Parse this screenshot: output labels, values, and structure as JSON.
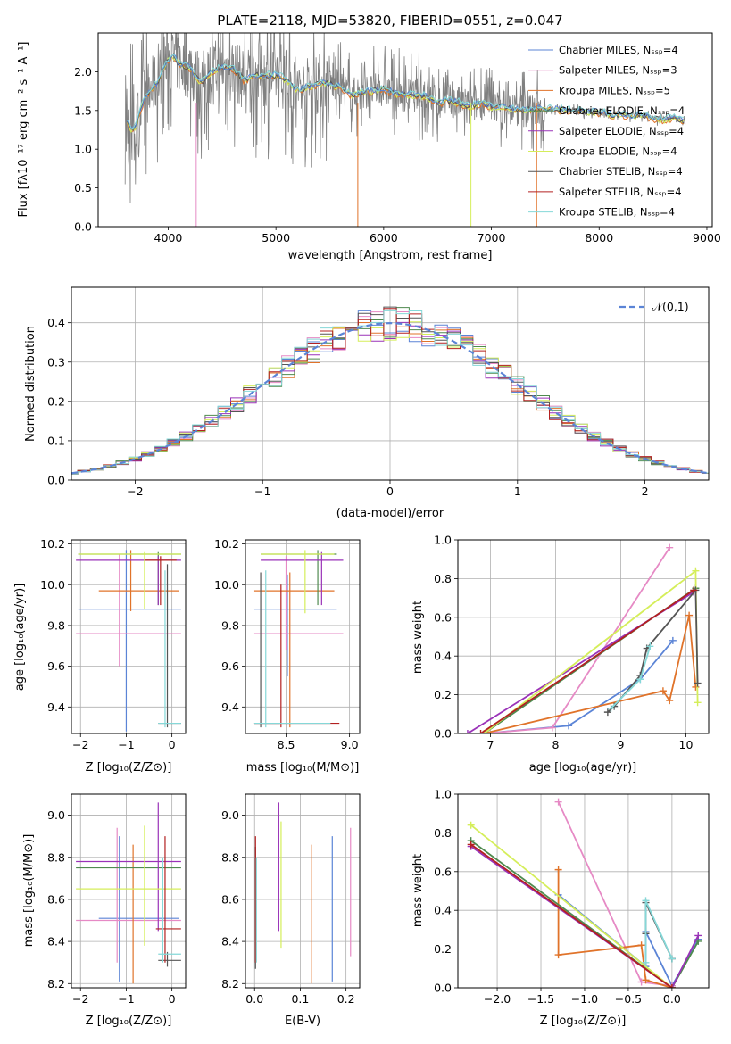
{
  "colors": [
    "#5b84d6",
    "#e68ac5",
    "#e0732a",
    "#4f8a4f",
    "#9a32b8",
    "#d5ee5a",
    "#555555",
    "#b32020",
    "#85d8d8"
  ],
  "chart_data": [
    {
      "id": "spectrum",
      "type": "line",
      "title": "PLATE=2118, MJD=53820, FIBERID=0551, z=0.047",
      "xlabel": "wavelength [Angstrom, rest frame]",
      "ylabel": "Flux [fλ10⁻¹⁷ erg cm⁻² s⁻¹ A⁻¹]",
      "xlim": [
        3350,
        9050
      ],
      "ylim": [
        0,
        2.5
      ],
      "xticks": [
        "4000",
        "5000",
        "6000",
        "7000",
        "8000",
        "9000"
      ],
      "yticks": [
        "0.0",
        "0.5",
        "1.0",
        "1.5",
        "2.0"
      ],
      "legend_position": "top-right",
      "legend": [
        "Chabrier MILES, Nₛₛₚ=4",
        "Salpeter MILES, Nₛₛₚ=3",
        "Kroupa MILES, Nₛₛₚ=5",
        "Chabrier ELODIE, Nₛₛₚ=4",
        "Salpeter ELODIE, Nₛₛₚ=4",
        "Kroupa ELODIE, Nₛₛₚ=4",
        "Chabrier STELIB, Nₛₛₚ=4",
        "Salpeter STELIB, Nₛₛₚ=4",
        "Kroupa STELIB, Nₛₛₚ=4"
      ],
      "model_trace": {
        "x": [
          3600,
          3650,
          3700,
          3750,
          3800,
          3850,
          3900,
          3950,
          4000,
          4050,
          4100,
          4200,
          4300,
          4400,
          4500,
          4600,
          4700,
          4800,
          4900,
          5000,
          5100,
          5200,
          5300,
          5400,
          5500,
          5600,
          5700,
          5800,
          5900,
          6000,
          6100,
          6200,
          6300,
          6400,
          6500,
          6600,
          6700,
          6800,
          6900,
          7000,
          7100,
          7200,
          7300,
          7400,
          7500,
          7600,
          7700,
          7800,
          7900,
          8000,
          8100,
          8200,
          8300,
          8400,
          8500,
          8600,
          8700,
          8800
        ],
        "y": [
          1.5,
          1.25,
          1.3,
          1.55,
          1.7,
          1.8,
          1.85,
          2.05,
          2.15,
          2.2,
          2.1,
          2.05,
          1.85,
          2.0,
          2.05,
          2.05,
          1.9,
          1.95,
          1.95,
          1.95,
          1.9,
          1.75,
          1.8,
          1.85,
          1.85,
          1.8,
          1.7,
          1.75,
          1.75,
          1.78,
          1.72,
          1.7,
          1.7,
          1.68,
          1.6,
          1.62,
          1.6,
          1.55,
          1.6,
          1.55,
          1.55,
          1.52,
          1.5,
          1.52,
          1.52,
          1.52,
          1.5,
          1.5,
          1.48,
          1.48,
          1.45,
          1.45,
          1.42,
          1.45,
          1.4,
          1.38,
          1.42,
          1.35
        ]
      }
    },
    {
      "id": "residuals",
      "type": "histogram",
      "xlabel": "(data-model)/error",
      "ylabel": "Normed distribution",
      "xlim": [
        -2.5,
        2.5
      ],
      "ylim": [
        0,
        0.49
      ],
      "xticks": [
        "−2",
        "−1",
        "0",
        "1",
        "2"
      ],
      "yticks": [
        "0.0",
        "0.1",
        "0.2",
        "0.3",
        "0.4"
      ],
      "legend": [
        "𝒩(0,1)"
      ],
      "legend_position": "top-right",
      "bin_width": 0.1,
      "reference_curve": "gaussian mean 0 sigma 1"
    },
    {
      "id": "age-vs-Z",
      "type": "errorbar",
      "xlabel": "Z [log₁₀(Z/Z⊙)]",
      "ylabel": "age  [log₁₀(age/yr)]",
      "xlim": [
        -2.2,
        0.3
      ],
      "ylim": [
        9.27,
        10.22
      ],
      "xticks": [
        "−2",
        "−1",
        "0"
      ],
      "yticks": [
        "9.4",
        "9.6",
        "9.8",
        "10.0",
        "10.2"
      ],
      "points": [
        {
          "c": 0,
          "x": -1.0,
          "y": 9.88,
          "xlo": -2.05,
          "xhi": 0.2,
          "ylo": 9.28,
          "yhi": 10.17
        },
        {
          "c": 1,
          "x": -1.15,
          "y": 9.76,
          "xlo": -2.1,
          "xhi": 0.2,
          "ylo": 9.6,
          "yhi": 10.15
        },
        {
          "c": 2,
          "x": -0.9,
          "y": 9.97,
          "xlo": -1.6,
          "xhi": 0.15,
          "ylo": 9.87,
          "yhi": 10.17
        },
        {
          "c": 3,
          "x": -0.3,
          "y": 10.15,
          "xlo": -2.05,
          "xhi": 0.2,
          "ylo": 9.9,
          "yhi": 10.16
        },
        {
          "c": 4,
          "x": -0.3,
          "y": 10.12,
          "xlo": -2.1,
          "xhi": 0.2,
          "ylo": 9.9,
          "yhi": 10.14
        },
        {
          "c": 5,
          "x": -0.6,
          "y": 10.15,
          "xlo": -2.05,
          "xhi": 0.2,
          "ylo": 9.88,
          "yhi": 10.16
        },
        {
          "c": 6,
          "x": -0.1,
          "y": 9.32,
          "xlo": -0.3,
          "xhi": 0.2,
          "ylo": 9.3,
          "yhi": 10.1
        },
        {
          "c": 7,
          "x": -0.25,
          "y": 10.12,
          "xlo": -0.6,
          "xhi": 0.1,
          "ylo": 9.9,
          "yhi": 10.14
        },
        {
          "c": 8,
          "x": -0.15,
          "y": 9.32,
          "xlo": -0.3,
          "xhi": 0.2,
          "ylo": 9.3,
          "yhi": 10.07
        }
      ]
    },
    {
      "id": "age-vs-mass",
      "type": "errorbar",
      "xlabel": "mass [log₁₀(M/M⊙)]",
      "ylabel": "",
      "xlim": [
        8.18,
        9.08
      ],
      "ylim": [
        9.27,
        10.22
      ],
      "xticks": [
        "8.5",
        "9.0"
      ],
      "yticks": [
        "9.4",
        "9.6",
        "9.8",
        "10.0",
        "10.2"
      ],
      "points": [
        {
          "c": 0,
          "x": 8.51,
          "y": 9.88,
          "xlo": 8.25,
          "xhi": 8.9,
          "ylo": 9.55,
          "yhi": 10.05
        },
        {
          "c": 1,
          "x": 8.5,
          "y": 9.76,
          "xlo": 8.25,
          "xhi": 8.95,
          "ylo": 9.68,
          "yhi": 10.14
        },
        {
          "c": 2,
          "x": 8.53,
          "y": 9.97,
          "xlo": 8.25,
          "xhi": 8.88,
          "ylo": 9.3,
          "yhi": 10.06
        },
        {
          "c": 3,
          "x": 8.75,
          "y": 10.15,
          "xlo": 8.3,
          "xhi": 8.9,
          "ylo": 9.9,
          "yhi": 10.17
        },
        {
          "c": 4,
          "x": 8.78,
          "y": 10.12,
          "xlo": 8.3,
          "xhi": 8.95,
          "ylo": 9.9,
          "yhi": 10.16
        },
        {
          "c": 5,
          "x": 8.65,
          "y": 10.15,
          "xlo": 8.3,
          "xhi": 8.88,
          "ylo": 9.86,
          "yhi": 10.17
        },
        {
          "c": 6,
          "x": 8.3,
          "y": 9.32,
          "xlo": 8.25,
          "xhi": 8.45,
          "ylo": 9.3,
          "yhi": 10.06
        },
        {
          "c": 7,
          "x": 8.46,
          "y": 9.32,
          "xlo": 8.25,
          "xhi": 8.92,
          "ylo": 9.3,
          "yhi": 10.0
        },
        {
          "c": 8,
          "x": 8.34,
          "y": 9.32,
          "xlo": 8.25,
          "xhi": 8.85,
          "ylo": 9.3,
          "yhi": 10.07
        }
      ]
    },
    {
      "id": "weight-vs-age",
      "type": "line",
      "xlabel": "age  [log₁₀(age/yr)]",
      "ylabel": "mass weight",
      "xlim": [
        6.5,
        10.35
      ],
      "ylim": [
        0,
        1.0
      ],
      "xticks": [
        "7",
        "8",
        "9",
        "10"
      ],
      "yticks": [
        "0.0",
        "0.2",
        "0.4",
        "0.6",
        "0.8",
        "1.0"
      ],
      "series": [
        {
          "c": 0,
          "x": [
            6.9,
            8.2,
            9.3,
            9.8
          ],
          "y": [
            0.0,
            0.04,
            0.28,
            0.48
          ]
        },
        {
          "c": 1,
          "x": [
            6.9,
            7.95,
            9.75
          ],
          "y": [
            0.0,
            0.03,
            0.96
          ]
        },
        {
          "c": 2,
          "x": [
            6.9,
            9.65,
            9.75,
            10.05,
            10.15
          ],
          "y": [
            0.0,
            0.22,
            0.17,
            0.61,
            0.24
          ]
        },
        {
          "c": 3,
          "x": [
            6.9,
            10.15
          ],
          "y": [
            0.0,
            0.75
          ]
        },
        {
          "c": 4,
          "x": [
            6.65,
            10.12
          ],
          "y": [
            0.0,
            0.73
          ]
        },
        {
          "c": 5,
          "x": [
            6.9,
            10.15,
            10.18
          ],
          "y": [
            0.0,
            0.84,
            0.16
          ]
        },
        {
          "c": 6,
          "x": [
            8.8,
            8.9,
            9.3,
            9.4,
            10.15,
            10.18
          ],
          "y": [
            0.11,
            0.14,
            0.3,
            0.44,
            0.74,
            0.26
          ]
        },
        {
          "c": 7,
          "x": [
            6.85,
            10.12
          ],
          "y": [
            0.0,
            0.74
          ]
        },
        {
          "c": 8,
          "x": [
            8.85,
            9.3,
            9.45
          ],
          "y": [
            0.13,
            0.28,
            0.45
          ]
        }
      ]
    },
    {
      "id": "mass-vs-Z",
      "type": "errorbar",
      "xlabel": "Z [log₁₀(Z/Z⊙)]",
      "ylabel": "mass [log₁₀(M/M⊙)]",
      "xlim": [
        -2.2,
        0.3
      ],
      "ylim": [
        8.18,
        9.1
      ],
      "xticks": [
        "−2",
        "−1",
        "0"
      ],
      "yticks": [
        "8.2",
        "8.4",
        "8.6",
        "8.8",
        "9.0"
      ],
      "points": [
        {
          "c": 0,
          "x": -1.15,
          "y": 8.51,
          "xlo": -1.6,
          "xhi": 0.15,
          "ylo": 8.21,
          "yhi": 8.9
        },
        {
          "c": 1,
          "x": -1.2,
          "y": 8.5,
          "xlo": -2.1,
          "xhi": 0.2,
          "ylo": 8.3,
          "yhi": 8.94
        },
        {
          "c": 2,
          "x": -0.85,
          "y": 8.53,
          "xlo": -0.85,
          "xhi": -0.85,
          "ylo": 8.2,
          "yhi": 8.86
        },
        {
          "c": 3,
          "x": -0.5,
          "y": 8.75,
          "xlo": -2.1,
          "xhi": 0.2,
          "ylo": 8.75,
          "yhi": 8.75
        },
        {
          "c": 4,
          "x": -0.3,
          "y": 8.78,
          "xlo": -2.1,
          "xhi": 0.2,
          "ylo": 8.45,
          "yhi": 9.06
        },
        {
          "c": 5,
          "x": -0.6,
          "y": 8.65,
          "xlo": -2.1,
          "xhi": 0.2,
          "ylo": 8.38,
          "yhi": 8.95
        },
        {
          "c": 6,
          "x": -0.1,
          "y": 8.31,
          "xlo": -0.3,
          "xhi": 0.2,
          "ylo": 8.28,
          "yhi": 8.35
        },
        {
          "c": 7,
          "x": -0.15,
          "y": 8.46,
          "xlo": -0.35,
          "xhi": 0.2,
          "ylo": 8.3,
          "yhi": 8.9
        },
        {
          "c": 8,
          "x": -0.2,
          "y": 8.34,
          "xlo": -0.3,
          "xhi": 0.2,
          "ylo": 8.3,
          "yhi": 8.8
        }
      ]
    },
    {
      "id": "mass-vs-EBV",
      "type": "errorbar",
      "xlabel": "E(B-V)",
      "ylabel": "",
      "xlim": [
        -0.02,
        0.23
      ],
      "ylim": [
        8.18,
        9.1
      ],
      "xticks": [
        "0.0",
        "0.1",
        "0.2"
      ],
      "yticks": [
        "8.2",
        "8.4",
        "8.6",
        "8.8",
        "9.0"
      ],
      "points": [
        {
          "c": 0,
          "x": 0.17,
          "ylo": 8.21,
          "yhi": 8.9
        },
        {
          "c": 1,
          "x": 0.21,
          "ylo": 8.33,
          "yhi": 8.94
        },
        {
          "c": 2,
          "x": 0.125,
          "ylo": 8.2,
          "yhi": 8.86
        },
        {
          "c": 3,
          "x": 0.002,
          "ylo": 8.3,
          "yhi": 8.8
        },
        {
          "c": 4,
          "x": 0.053,
          "ylo": 8.45,
          "yhi": 9.06
        },
        {
          "c": 5,
          "x": 0.058,
          "ylo": 8.37,
          "yhi": 8.97
        },
        {
          "c": 6,
          "x": 0.002,
          "ylo": 8.27,
          "yhi": 8.85
        },
        {
          "c": 7,
          "x": 0.002,
          "ylo": 8.3,
          "yhi": 8.9
        },
        {
          "c": 8,
          "x": 0.004,
          "ylo": 8.3,
          "yhi": 8.8
        }
      ]
    },
    {
      "id": "weight-vs-Z",
      "type": "line",
      "xlabel": "Z [log₁₀(Z/Z⊙)]",
      "ylabel": "mass weight",
      "xlim": [
        -2.45,
        0.42
      ],
      "ylim": [
        0,
        1.0
      ],
      "xticks": [
        "−2.0",
        "−1.5",
        "−1.0",
        "−0.5",
        "0.0"
      ],
      "yticks": [
        "0.0",
        "0.2",
        "0.4",
        "0.6",
        "0.8",
        "1.0"
      ],
      "series": [
        {
          "c": 0,
          "x": [
            -1.3,
            -0.3,
            -0.3,
            0.0,
            0.3
          ],
          "y": [
            0.48,
            0.11,
            0.29,
            0.01,
            0.25
          ]
        },
        {
          "c": 1,
          "x": [
            -1.3,
            -0.35,
            0.0
          ],
          "y": [
            0.96,
            0.03,
            0.01
          ]
        },
        {
          "c": 2,
          "x": [
            -1.3,
            -1.3,
            -0.35,
            -0.3,
            0.0
          ],
          "y": [
            0.61,
            0.17,
            0.22,
            0.04,
            0.0
          ]
        },
        {
          "c": 3,
          "x": [
            -2.3,
            0.0,
            0.3
          ],
          "y": [
            0.76,
            0.0,
            0.24
          ]
        },
        {
          "c": 4,
          "x": [
            -2.3,
            0.0,
            0.3
          ],
          "y": [
            0.73,
            0.0,
            0.27
          ]
        },
        {
          "c": 5,
          "x": [
            -2.3,
            0.0
          ],
          "y": [
            0.84,
            0.0
          ]
        },
        {
          "c": 6,
          "x": [
            -0.3,
            -0.3,
            0.0,
            0.0
          ],
          "y": [
            0.28,
            0.44,
            0.15,
            0.15
          ]
        },
        {
          "c": 7,
          "x": [
            -2.3,
            0.0
          ],
          "y": [
            0.74,
            0.0
          ]
        },
        {
          "c": 8,
          "x": [
            -0.3,
            -0.3,
            0.0
          ],
          "y": [
            0.13,
            0.45,
            0.15
          ]
        }
      ]
    }
  ]
}
